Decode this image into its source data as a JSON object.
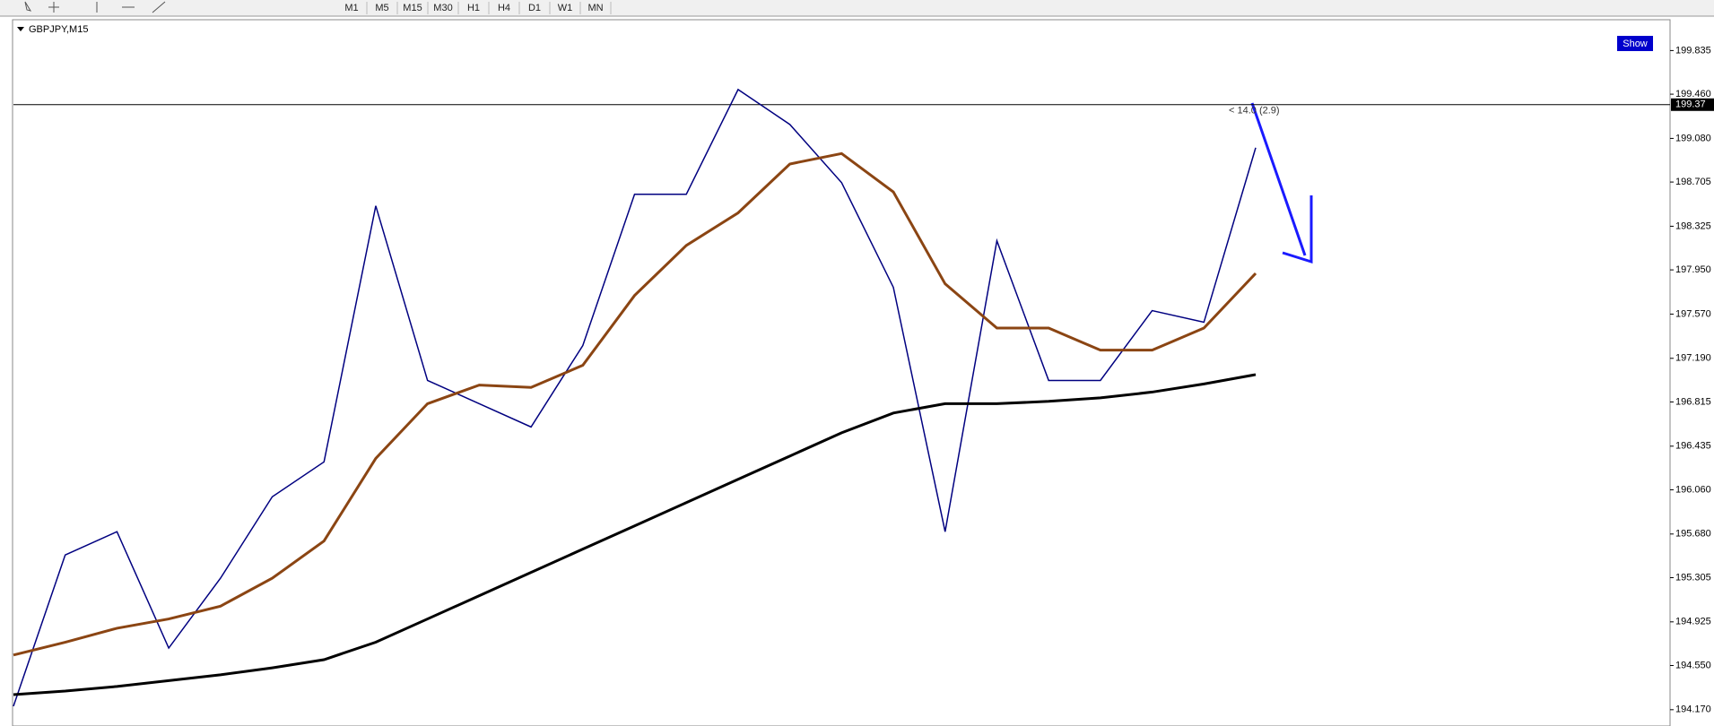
{
  "toolbar": {
    "timeframes": [
      "M1",
      "M5",
      "M15",
      "M30",
      "H1",
      "H4",
      "D1",
      "W1",
      "MN"
    ]
  },
  "chart_data": {
    "type": "line",
    "title": "GBPJPY,M15",
    "button": "Show",
    "annotation": "< 14.0 (2.9)",
    "current_price": {
      "value": 199.37,
      "label": "199.37"
    },
    "ylim": [
      194.03,
      200.1
    ],
    "yticks": [
      199.835,
      {
        "value": 199.46,
        "label": "199.460"
      },
      {
        "value": 199.08,
        "label": "199.080"
      },
      198.705,
      198.325,
      {
        "value": 197.95,
        "label": "197.950"
      },
      {
        "value": 197.57,
        "label": "197.570"
      },
      {
        "value": 197.19,
        "label": "197.190"
      },
      196.815,
      196.435,
      {
        "value": 196.06,
        "label": "196.060"
      },
      {
        "value": 195.68,
        "label": "195.680"
      },
      195.305,
      194.925,
      {
        "value": 194.55,
        "label": "194.550"
      },
      {
        "value": 194.17,
        "label": "194.170"
      }
    ],
    "series": [
      {
        "color": "#000080",
        "values": [
          194.2,
          195.5,
          195.7,
          194.7,
          195.3,
          196.0,
          196.3,
          198.5,
          197.0,
          196.8,
          196.6,
          197.3,
          198.6,
          198.6,
          199.5,
          199.2,
          198.7,
          197.8,
          195.7,
          198.2,
          197.0,
          197.0,
          197.6,
          197.5,
          199.0
        ]
      },
      {
        "color": "#8b4513",
        "values": [
          194.64,
          194.75,
          194.87,
          194.95,
          195.06,
          195.3,
          195.62,
          196.33,
          196.8,
          196.96,
          196.94,
          197.13,
          197.73,
          198.16,
          198.44,
          198.86,
          198.95,
          198.62,
          197.83,
          197.45,
          197.45,
          197.26,
          197.26,
          197.45,
          197.92
        ]
      },
      {
        "color": "#000000",
        "values": [
          194.3,
          194.33,
          194.37,
          194.42,
          194.47,
          194.53,
          194.6,
          194.75,
          194.95,
          195.15,
          195.35,
          195.55,
          195.75,
          195.95,
          196.15,
          196.35,
          196.55,
          196.72,
          196.8,
          196.8,
          196.82,
          196.85,
          196.9,
          196.97,
          197.05
        ]
      }
    ]
  }
}
